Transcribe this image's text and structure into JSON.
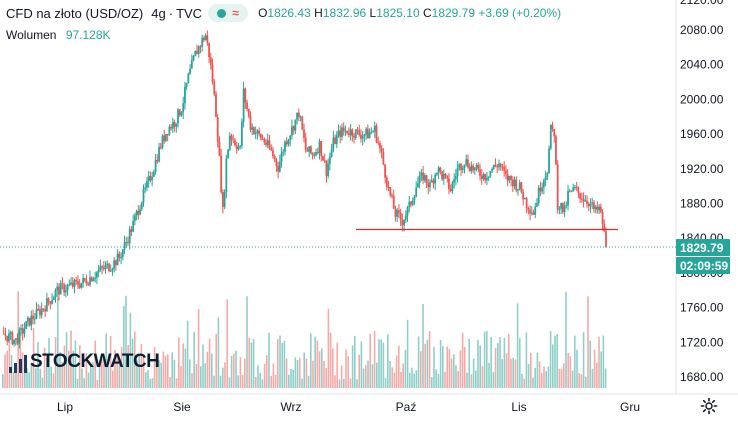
{
  "legend": {
    "symbol": "CFD na złoto (USD/OZ)",
    "interval": "4g",
    "source": "TVC",
    "open_label": "O",
    "open": "1826.43",
    "high_label": "H",
    "high": "1832.96",
    "low_label": "L",
    "low": "1825.10",
    "close_label": "C",
    "close": "1829.79",
    "change": "+3.69 (+0.20%)"
  },
  "volume_legend": {
    "label": "Wolumen",
    "value": "97.128K"
  },
  "watermark": {
    "text": "STOCKWATCH"
  },
  "price_badge": {
    "price": "1829.79",
    "countdown": "02:09:59"
  },
  "colors": {
    "up": "#26a69a",
    "down": "#ef5350",
    "vol_up": "#8ecfc9",
    "vol_down": "#f7a9a7",
    "support": "#d32f2f"
  },
  "chart_data": {
    "type": "candlestick",
    "title": "CFD na złoto (USD/OZ)",
    "interval": "4g",
    "y_ticks": [
      "1680.00",
      "1720.00",
      "1760.00",
      "1800.00",
      "1840.00",
      "1880.00",
      "1920.00",
      "1960.00",
      "2000.00",
      "2040.00",
      "2080.00"
    ],
    "y_top_partial": "2120.00",
    "ylim": [
      1665,
      2110
    ],
    "x_ticks": [
      "Lip",
      "Sie",
      "Wrz",
      "Paź",
      "Lis",
      "Gru"
    ],
    "last_price": 1829.79,
    "support_level": 1850,
    "price_path": [
      [
        0,
        1730
      ],
      [
        4,
        1722
      ],
      [
        8,
        1745
      ],
      [
        12,
        1760
      ],
      [
        16,
        1780
      ],
      [
        20,
        1785
      ],
      [
        24,
        1790
      ],
      [
        26,
        1796
      ],
      [
        28,
        1802
      ],
      [
        30,
        1806
      ],
      [
        32,
        1810
      ],
      [
        34,
        1818
      ],
      [
        36,
        1836
      ],
      [
        38,
        1856
      ],
      [
        40,
        1880
      ],
      [
        42,
        1900
      ],
      [
        44,
        1922
      ],
      [
        46,
        1948
      ],
      [
        48,
        1966
      ],
      [
        50,
        1974
      ],
      [
        52,
        1990
      ],
      [
        54,
        2025
      ],
      [
        56,
        2052
      ],
      [
        58,
        2068
      ],
      [
        59,
        2074
      ],
      [
        60,
        2052
      ],
      [
        61,
        2022
      ],
      [
        62,
        1985
      ],
      [
        63,
        1930
      ],
      [
        64,
        1870
      ],
      [
        65,
        1930
      ],
      [
        66,
        1960
      ],
      [
        68,
        1948
      ],
      [
        69,
        1942
      ],
      [
        70,
        2008
      ],
      [
        72,
        1970
      ],
      [
        74,
        1960
      ],
      [
        76,
        1952
      ],
      [
        78,
        1940
      ],
      [
        80,
        1922
      ],
      [
        82,
        1950
      ],
      [
        84,
        1966
      ],
      [
        86,
        1985
      ],
      [
        88,
        1942
      ],
      [
        90,
        1936
      ],
      [
        92,
        1948
      ],
      [
        94,
        1918
      ],
      [
        96,
        1950
      ],
      [
        98,
        1962
      ],
      [
        100,
        1964
      ],
      [
        102,
        1962
      ],
      [
        104,
        1960
      ],
      [
        106,
        1960
      ],
      [
        108,
        1965
      ],
      [
        110,
        1935
      ],
      [
        112,
        1896
      ],
      [
        114,
        1868
      ],
      [
        116,
        1860
      ],
      [
        118,
        1876
      ],
      [
        120,
        1900
      ],
      [
        122,
        1912
      ],
      [
        124,
        1900
      ],
      [
        126,
        1920
      ],
      [
        128,
        1910
      ],
      [
        130,
        1896
      ],
      [
        132,
        1920
      ],
      [
        134,
        1930
      ],
      [
        136,
        1922
      ],
      [
        138,
        1916
      ],
      [
        140,
        1912
      ],
      [
        142,
        1920
      ],
      [
        144,
        1926
      ],
      [
        146,
        1910
      ],
      [
        148,
        1906
      ],
      [
        150,
        1898
      ],
      [
        152,
        1880
      ],
      [
        154,
        1870
      ],
      [
        156,
        1900
      ],
      [
        158,
        1920
      ],
      [
        159,
        1964
      ],
      [
        160,
        1962
      ],
      [
        161,
        1880
      ],
      [
        162,
        1876
      ],
      [
        163,
        1870
      ],
      [
        164,
        1890
      ],
      [
        166,
        1896
      ],
      [
        168,
        1888
      ],
      [
        170,
        1882
      ],
      [
        172,
        1870
      ],
      [
        173,
        1874
      ],
      [
        174,
        1858
      ],
      [
        175,
        1829.79
      ]
    ],
    "volume_note": "volume histogram bars along bottom"
  }
}
